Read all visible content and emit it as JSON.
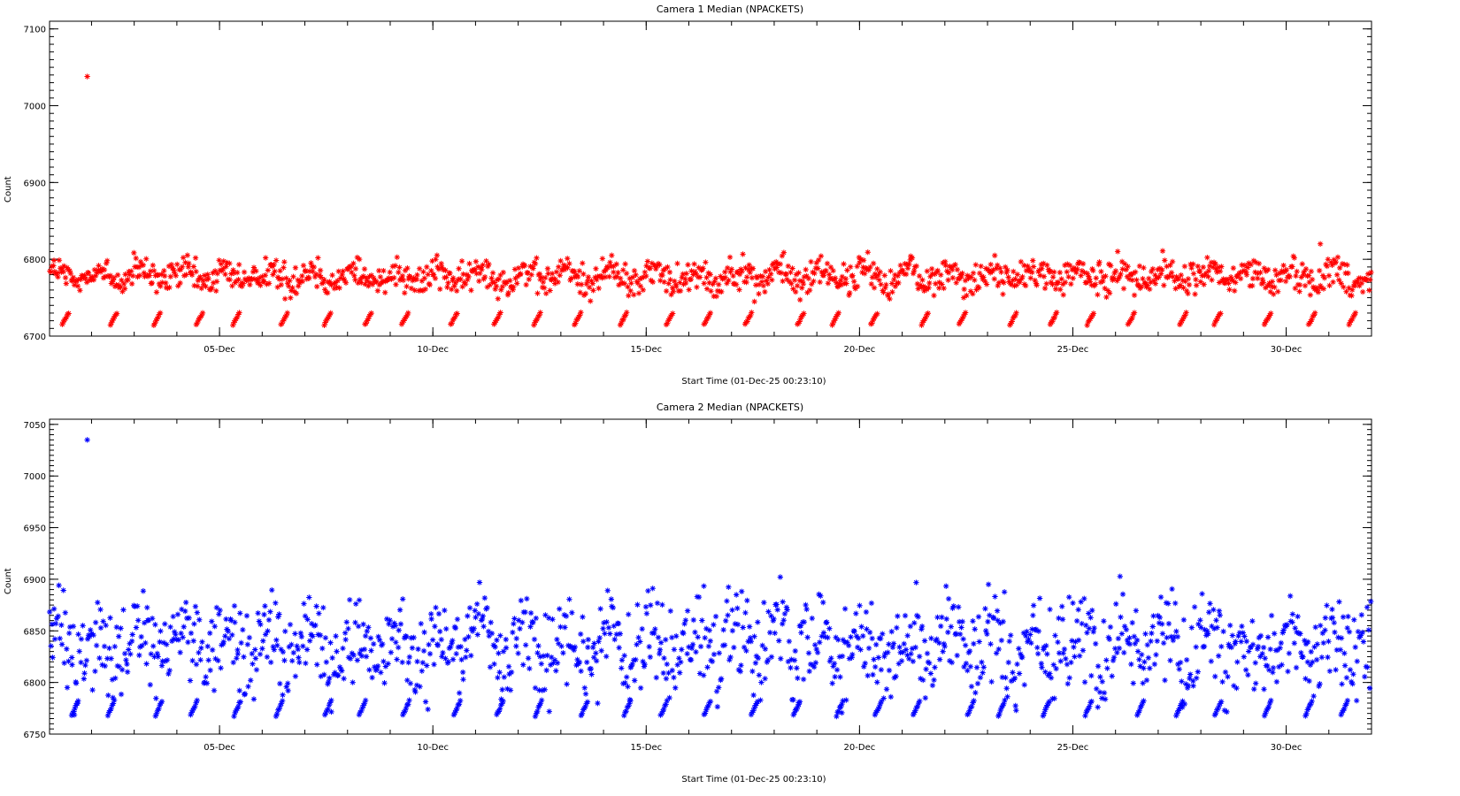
{
  "chart_data": [
    {
      "type": "scatter",
      "title": "Camera 1 Median (NPACKETS)",
      "xlabel": "Start Time (01-Dec-25 00:23:10)",
      "ylabel": "Count",
      "xlim": [
        1.016,
        32.0
      ],
      "ylim": [
        6700,
        7110
      ],
      "yticks": [
        6700,
        6800,
        6900,
        7000,
        7100
      ],
      "xticks": [
        {
          "label": "05-Dec",
          "day": 5
        },
        {
          "label": "10-Dec",
          "day": 10
        },
        {
          "label": "15-Dec",
          "day": 15
        },
        {
          "label": "20-Dec",
          "day": 20
        },
        {
          "label": "25-Dec",
          "day": 25
        },
        {
          "label": "30-Dec",
          "day": 30
        }
      ],
      "marker": "asterisk",
      "color": "#ff0000",
      "grid": false,
      "series_description": {
        "main_band": {
          "day_range": [
            1.0,
            32.0
          ],
          "center": 6778,
          "spread": [
            6740,
            6810
          ]
        },
        "daily_cluster": {
          "level": 6722,
          "spread": [
            6715,
            6730
          ],
          "one_per_day": true
        },
        "outliers": [
          {
            "day": 1.9,
            "value": 7038
          },
          {
            "day": 30.8,
            "value": 6820
          }
        ]
      }
    },
    {
      "type": "scatter",
      "title": "Camera 2 Median (NPACKETS)",
      "xlabel": "Start Time (01-Dec-25 00:23:10)",
      "ylabel": "Count",
      "xlim": [
        1.016,
        32.0
      ],
      "ylim": [
        6750,
        7055
      ],
      "yticks": [
        6750,
        6800,
        6850,
        6900,
        6950,
        7000,
        7050
      ],
      "xticks": [
        {
          "label": "05-Dec",
          "day": 5
        },
        {
          "label": "10-Dec",
          "day": 10
        },
        {
          "label": "15-Dec",
          "day": 15
        },
        {
          "label": "20-Dec",
          "day": 20
        },
        {
          "label": "25-Dec",
          "day": 25
        },
        {
          "label": "30-Dec",
          "day": 30
        }
      ],
      "marker": "asterisk",
      "color": "#0000ff",
      "grid": false,
      "series_description": {
        "main_band": {
          "day_range": [
            1.0,
            32.0
          ],
          "center": 6835,
          "spread": [
            6770,
            6920
          ]
        },
        "daily_cluster": {
          "level": 6775,
          "spread": [
            6768,
            6782
          ],
          "one_per_day": true
        },
        "outliers": [
          {
            "day": 1.9,
            "value": 7035
          }
        ]
      }
    }
  ]
}
